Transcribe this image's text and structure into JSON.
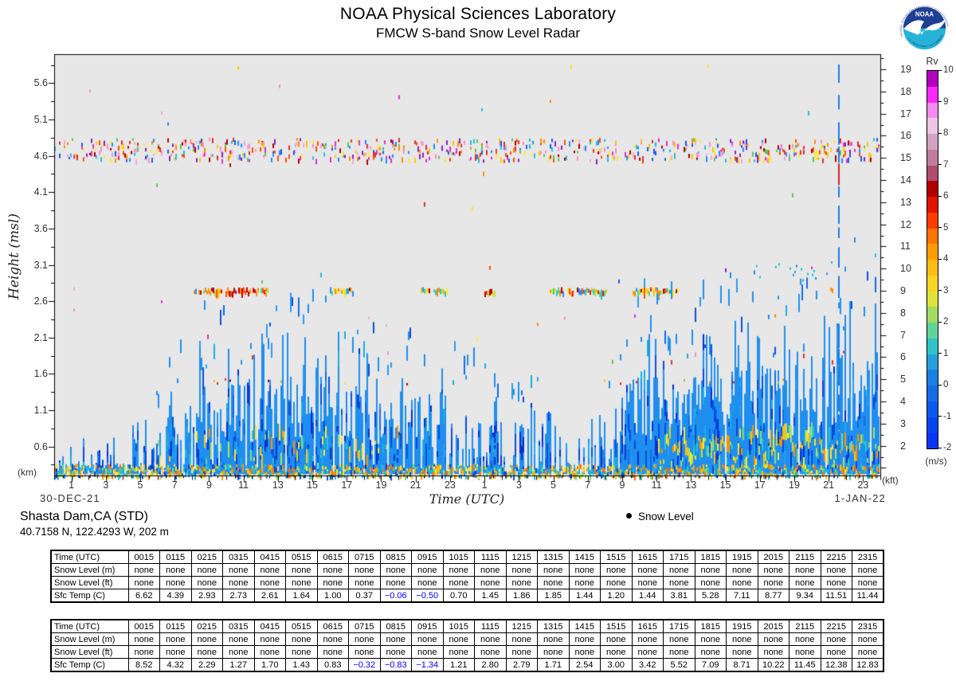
{
  "header": {
    "title": "NOAA Physical Sciences Laboratory",
    "subtitle": "FMCW S-band Snow Level Radar",
    "logo": {
      "name": "NOAA",
      "ring_text_top": "NATIONAL OCEANIC AND ATMOSPHERIC ADMINISTRATION",
      "ring_text_bottom": "U.S. DEPARTMENT OF COMMERCE"
    }
  },
  "station": {
    "name": "Shasta Dam,CA (STD)",
    "coords": "40.7158 N, 122.4293 W, 202 m"
  },
  "legend": {
    "snow_level": "Snow Level"
  },
  "chart_data": {
    "type": "heatmap",
    "title": "FMCW S-band Snow Level Radar",
    "xlabel": "Time (UTC)",
    "ylabel": "Height (msl)",
    "x_dates": [
      "30-DEC-21",
      "1-JAN-22"
    ],
    "x_hours_per_day_labels": [
      "1",
      "3",
      "5",
      "7",
      "9",
      "11",
      "13",
      "15",
      "17",
      "19",
      "21",
      "23"
    ],
    "x_range_hours": [
      0,
      48
    ],
    "y_left_unit": "(km)",
    "y_left_ticks": [
      "5.6",
      "5.1",
      "4.6",
      "4.1",
      "3.6",
      "3.1",
      "2.6",
      "2.1",
      "1.6",
      "1.1",
      "0.6"
    ],
    "y_left_range_km": [
      0.2,
      6.0
    ],
    "y_right_unit": "(kft)",
    "y_right_ticks": [
      "19",
      "18",
      "17",
      "16",
      "15",
      "14",
      "13",
      "12",
      "11",
      "10",
      "9",
      "8",
      "7",
      "6",
      "5",
      "4",
      "3",
      "2"
    ],
    "background": "#e7e7e7",
    "colorbar": {
      "title": "Rv",
      "unit": "(m/s)",
      "range": [
        -2,
        10
      ],
      "tick_labels": [
        "10",
        "9",
        "8",
        "7",
        "6",
        "5",
        "4",
        "3",
        "2",
        "1",
        "0",
        "-1",
        "-2"
      ],
      "colors_bottom_to_top": [
        "#0a34f4",
        "#0845f0",
        "#0c58ec",
        "#146ce6",
        "#1c80e2",
        "#28a0da",
        "#30c4c4",
        "#60d498",
        "#a4da62",
        "#e0e23c",
        "#fad426",
        "#ffbc14",
        "#ff9c04",
        "#ff7400",
        "#fa3c00",
        "#e01400",
        "#b00000",
        "#b04c6c",
        "#c07c9c",
        "#d2a2c2",
        "#eec6e6",
        "#f68cf0",
        "#fb28fb",
        "#b400c0"
      ]
    },
    "features": {
      "speckle_band_km": [
        4.55,
        4.85
      ],
      "bright_band_km": [
        2.68,
        2.8
      ],
      "bright_band_segments_hours": [
        [
          8.1,
          12.4
        ],
        [
          16.0,
          17.4
        ],
        [
          21.3,
          22.8
        ],
        [
          25.0,
          25.6
        ],
        [
          28.8,
          32.1
        ],
        [
          33.6,
          36.2
        ],
        [
          45.1,
          45.3
        ]
      ],
      "sparse_row_km": 1.5,
      "surface_clutter_km": [
        0.2,
        0.36
      ],
      "vertical_line_hour": 45.6,
      "elevated_specks_hours": [
        40.3,
        45.2
      ],
      "elevated_specks_km": [
        2.9,
        3.15
      ],
      "precip_envelope": [
        [
          0,
          0.5
        ],
        [
          3,
          0.55
        ],
        [
          5,
          0.75
        ],
        [
          6.5,
          1.0
        ],
        [
          7.5,
          1.45
        ],
        [
          9,
          1.55
        ],
        [
          11,
          1.5
        ],
        [
          13,
          1.6
        ],
        [
          16,
          1.65
        ],
        [
          18,
          1.5
        ],
        [
          20,
          1.35
        ],
        [
          22,
          1.25
        ],
        [
          24,
          1.15
        ],
        [
          26,
          1.0
        ],
        [
          28,
          0.95
        ],
        [
          30,
          0.85
        ],
        [
          32,
          0.8
        ],
        [
          33,
          1.55
        ],
        [
          34,
          1.75
        ],
        [
          36,
          1.65
        ],
        [
          38,
          1.7
        ],
        [
          40,
          1.85
        ],
        [
          42,
          1.7
        ],
        [
          44,
          1.85
        ],
        [
          45.5,
          1.95
        ],
        [
          47,
          2.15
        ],
        [
          48,
          2.15
        ]
      ],
      "precip_density": [
        [
          0,
          0.55
        ],
        [
          4,
          0.6
        ],
        [
          6,
          0.7
        ],
        [
          7,
          0.88
        ],
        [
          18,
          0.85
        ],
        [
          21,
          0.8
        ],
        [
          24,
          0.72
        ],
        [
          27,
          0.6
        ],
        [
          29,
          0.5
        ],
        [
          32,
          0.45
        ],
        [
          33,
          0.93
        ],
        [
          40,
          0.95
        ],
        [
          48,
          0.96
        ]
      ],
      "palette_precip": [
        "#1f8fef",
        "#1f8fef",
        "#1f8fef",
        "#2a9bf0",
        "#0f6ce8",
        "#0a50dc",
        "#18b0e0"
      ],
      "palette_precip_deep": [
        "#0030d0",
        "#0848e0"
      ],
      "palette_precip_warm": [
        "#7fd98e",
        "#b8e050",
        "#ffe428",
        "#ffc010",
        "#ff9000",
        "#28c8c8"
      ],
      "palette_speckle": [
        "#e03028",
        "#b00000",
        "#ff9000",
        "#ffc800",
        "#ffe830",
        "#e030d0",
        "#ff8cc8",
        "#2058e8",
        "#1e90ff",
        "#20c0d8",
        "#58c850",
        "#f0a8e0",
        "#8820c0",
        "#ff5000"
      ],
      "palette_bright": [
        "#1e90ff",
        "#20c8d8",
        "#50d890",
        "#b0e040",
        "#ffe820",
        "#ffc000",
        "#ff8800",
        "#ff5000",
        "#e82000",
        "#b80000",
        "#ffe820",
        "#ff9800"
      ],
      "palette_bright_red": [
        "#e82000",
        "#b80000",
        "#ff5000",
        "#d00000",
        "#ff8800"
      ],
      "palette_bottom": [
        "#ffe428",
        "#ffc010",
        "#ff9800",
        "#ff7000",
        "#22b4e4",
        "#1f8fef",
        "#0a48e0",
        "#80d860",
        "#20c8c8"
      ],
      "palette_sparse": [
        "#e03028",
        "#ff9000",
        "#ffc810",
        "#f088c8",
        "#80cc50",
        "#ffe830",
        "#b00000"
      ]
    }
  },
  "tables": {
    "row_labels": [
      "Time (UTC)",
      "Snow Level (m)",
      "Snow Level (ft)",
      "Sfc Temp (C)"
    ],
    "times": [
      "0015",
      "0115",
      "0215",
      "0315",
      "0415",
      "0515",
      "0615",
      "0715",
      "0815",
      "0915",
      "1015",
      "1115",
      "1215",
      "1315",
      "1415",
      "1515",
      "1615",
      "1715",
      "1815",
      "1915",
      "2015",
      "2115",
      "2215",
      "2315"
    ],
    "negative_color": "#0000ee",
    "days": [
      {
        "snow_level_m": [
          "none",
          "none",
          "none",
          "none",
          "none",
          "none",
          "none",
          "none",
          "none",
          "none",
          "none",
          "none",
          "none",
          "none",
          "none",
          "none",
          "none",
          "none",
          "none",
          "none",
          "none",
          "none",
          "none",
          "none"
        ],
        "snow_level_ft": [
          "none",
          "none",
          "none",
          "none",
          "none",
          "none",
          "none",
          "none",
          "none",
          "none",
          "none",
          "none",
          "none",
          "none",
          "none",
          "none",
          "none",
          "none",
          "none",
          "none",
          "none",
          "none",
          "none",
          "none"
        ],
        "sfc_temp_c": [
          "6.62",
          "4.39",
          "2.93",
          "2.73",
          "2.61",
          "1.64",
          "1.00",
          "0.37",
          "−0.06",
          "−0.50",
          "0.70",
          "1.45",
          "1.86",
          "1.85",
          "1.44",
          "1.20",
          "1.44",
          "3.81",
          "5.28",
          "7.11",
          "8.77",
          "9.34",
          "11.51",
          "11.44"
        ]
      },
      {
        "snow_level_m": [
          "none",
          "none",
          "none",
          "none",
          "none",
          "none",
          "none",
          "none",
          "none",
          "none",
          "none",
          "none",
          "none",
          "none",
          "none",
          "none",
          "none",
          "none",
          "none",
          "none",
          "none",
          "none",
          "none",
          "none"
        ],
        "snow_level_ft": [
          "none",
          "none",
          "none",
          "none",
          "none",
          "none",
          "none",
          "none",
          "none",
          "none",
          "none",
          "none",
          "none",
          "none",
          "none",
          "none",
          "none",
          "none",
          "none",
          "none",
          "none",
          "none",
          "none",
          "none"
        ],
        "sfc_temp_c": [
          "8.52",
          "4.32",
          "2.29",
          "1.27",
          "1.70",
          "1.43",
          "0.83",
          "−0.32",
          "−0.83",
          "−1.34",
          "1.21",
          "2.80",
          "2.79",
          "1.71",
          "2.54",
          "3.00",
          "3.42",
          "5.52",
          "7.09",
          "8.71",
          "10.22",
          "11.45",
          "12.38",
          "12.83"
        ]
      }
    ]
  }
}
